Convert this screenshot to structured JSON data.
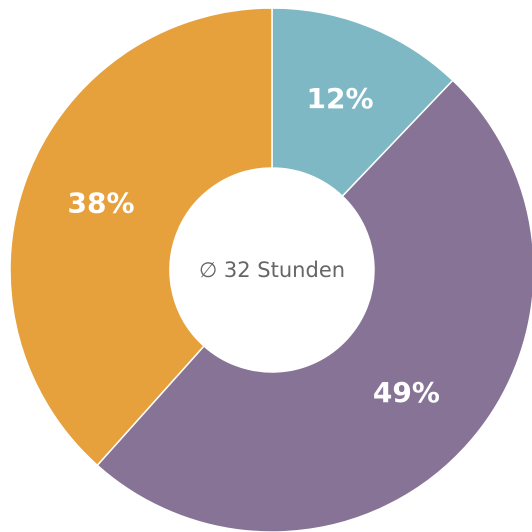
{
  "chart_data": {
    "type": "pie",
    "center_label": "∅ 32 Stunden",
    "categories": [
      null,
      null,
      null
    ],
    "values": [
      12,
      49,
      38
    ],
    "value_labels": [
      "12%",
      "49%",
      "38%"
    ],
    "colors": [
      "#7db8c4",
      "#877396",
      "#e6a03c"
    ]
  }
}
